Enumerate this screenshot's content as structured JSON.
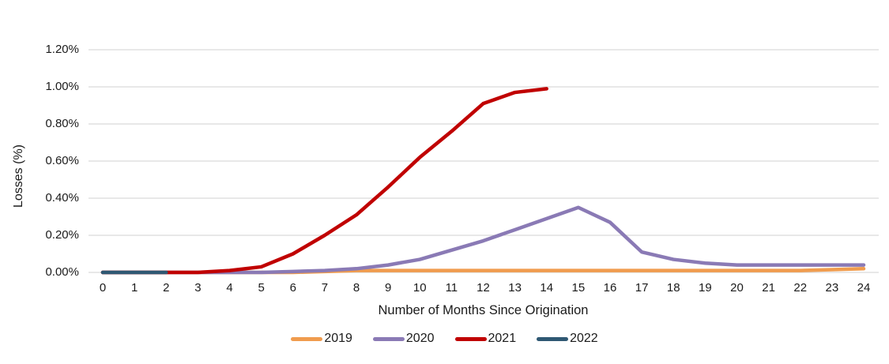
{
  "chart_data": {
    "type": "line",
    "title": "",
    "xlabel": "Number of Months Since Origination",
    "ylabel": "Losses (%)",
    "x": [
      0,
      1,
      2,
      3,
      4,
      5,
      6,
      7,
      8,
      9,
      10,
      11,
      12,
      13,
      14,
      15,
      16,
      17,
      18,
      19,
      20,
      21,
      22,
      23,
      24
    ],
    "xlim": [
      0,
      24
    ],
    "ylim": [
      0,
      1.2
    ],
    "grid": "horizontal-only",
    "gridline_color": "#d9d9d9",
    "legend_position": "bottom-center",
    "y_ticks": [
      {
        "label": "0.00%",
        "value": 0.0
      },
      {
        "label": "0.20%",
        "value": 0.2
      },
      {
        "label": "0.40%",
        "value": 0.4
      },
      {
        "label": "0.60%",
        "value": 0.6
      },
      {
        "label": "0.80%",
        "value": 0.8
      },
      {
        "label": "1.00%",
        "value": 1.0
      },
      {
        "label": "1.20%",
        "value": 1.2
      }
    ],
    "series": [
      {
        "name": "2019",
        "color": "#F09C4E",
        "x_start": 0,
        "values": [
          0.0,
          0.0,
          0.0,
          0.0,
          0.0,
          0.0,
          0.0,
          0.005,
          0.01,
          0.01,
          0.01,
          0.01,
          0.01,
          0.01,
          0.01,
          0.01,
          0.01,
          0.01,
          0.01,
          0.01,
          0.01,
          0.01,
          0.01,
          0.015,
          0.02
        ]
      },
      {
        "name": "2020",
        "color": "#8A7AB5",
        "x_start": 0,
        "values": [
          0.0,
          0.0,
          0.0,
          0.0,
          0.0,
          0.0,
          0.005,
          0.01,
          0.02,
          0.04,
          0.07,
          0.12,
          0.17,
          0.23,
          0.29,
          0.35,
          0.27,
          0.11,
          0.07,
          0.05,
          0.04,
          0.04,
          0.04,
          0.04,
          0.04
        ]
      },
      {
        "name": "2021",
        "color": "#C00000",
        "x_start": 0,
        "values": [
          0.0,
          0.0,
          0.0,
          0.0,
          0.01,
          0.03,
          0.1,
          0.2,
          0.31,
          0.46,
          0.62,
          0.76,
          0.91,
          0.97,
          0.99
        ]
      },
      {
        "name": "2022",
        "color": "#2F5873",
        "x_start": 0,
        "values": [
          0.0,
          0.0,
          0.0
        ]
      }
    ]
  }
}
